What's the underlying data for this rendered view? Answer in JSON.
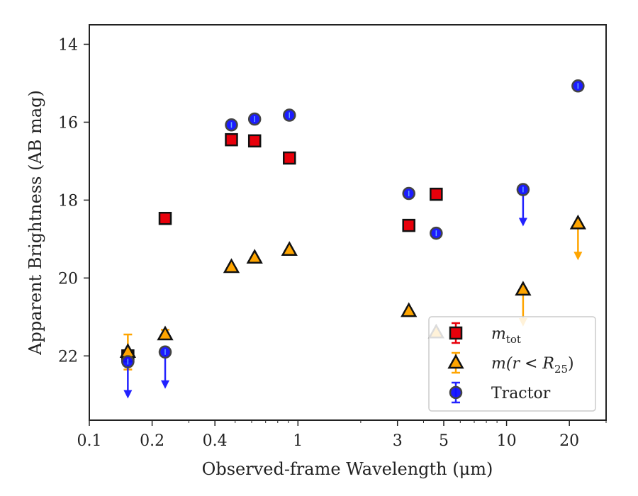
{
  "chart_data": {
    "type": "scatter",
    "xlabel": "Observed-frame Wavelength (μm)",
    "ylabel": "Apparent Brightness (AB mag)",
    "xscale": "log",
    "xlim": [
      0.1,
      30
    ],
    "ylim": [
      23.65,
      13.5
    ],
    "y_inverted": true,
    "x_ticks": [
      0.1,
      0.2,
      0.4,
      1,
      3,
      5,
      10,
      20
    ],
    "x_tick_labels": [
      "0.1",
      "0.2",
      "0.4",
      "1",
      "3",
      "5",
      "10",
      "20"
    ],
    "y_ticks": [
      14,
      16,
      18,
      20,
      22
    ],
    "y_tick_labels": [
      "14",
      "16",
      "18",
      "20",
      "22"
    ],
    "grid": false,
    "legend_position": "lower-right",
    "series": [
      {
        "key": "m_tot",
        "legend_label": "m",
        "legend_sub": "tot",
        "marker": "square",
        "fill": "#e8000b",
        "errorbar_color": "#e8000b",
        "points": [
          {
            "x": 0.153,
            "y": 22.0
          },
          {
            "x": 0.231,
            "y": 18.47
          },
          {
            "x": 0.48,
            "y": 16.45
          },
          {
            "x": 0.62,
            "y": 16.48
          },
          {
            "x": 0.91,
            "y": 16.92
          },
          {
            "x": 3.4,
            "y": 18.65
          },
          {
            "x": 4.6,
            "y": 17.85
          }
        ]
      },
      {
        "key": "m_r25",
        "legend_label": "m(r < R",
        "legend_sub": "25",
        "legend_suffix": ")",
        "marker": "triangle",
        "fill": "#ffa500",
        "errorbar_color": "#ffa500",
        "points": [
          {
            "x": 0.153,
            "y": 21.9,
            "err": 0.45
          },
          {
            "x": 0.231,
            "y": 21.45,
            "err": 0.12
          },
          {
            "x": 0.48,
            "y": 19.72
          },
          {
            "x": 0.62,
            "y": 19.48
          },
          {
            "x": 0.91,
            "y": 19.28
          },
          {
            "x": 3.4,
            "y": 20.85
          },
          {
            "x": 4.6,
            "y": 21.4
          },
          {
            "x": 12.0,
            "y": 20.3,
            "upper_limit": true
          },
          {
            "x": 22.0,
            "y": 18.6,
            "upper_limit": true
          }
        ]
      },
      {
        "key": "tractor",
        "legend_label": "Tractor",
        "marker": "circle",
        "fill": "#1010ff",
        "errorbar_color": "#2222ff",
        "points": [
          {
            "x": 0.153,
            "y": 22.15,
            "upper_limit": true
          },
          {
            "x": 0.231,
            "y": 21.9,
            "upper_limit": true
          },
          {
            "x": 0.48,
            "y": 16.07
          },
          {
            "x": 0.62,
            "y": 15.92
          },
          {
            "x": 0.91,
            "y": 15.82
          },
          {
            "x": 3.4,
            "y": 17.83
          },
          {
            "x": 4.6,
            "y": 18.85
          },
          {
            "x": 12.0,
            "y": 17.73,
            "upper_limit": true
          },
          {
            "x": 22.0,
            "y": 15.07
          }
        ]
      }
    ]
  }
}
